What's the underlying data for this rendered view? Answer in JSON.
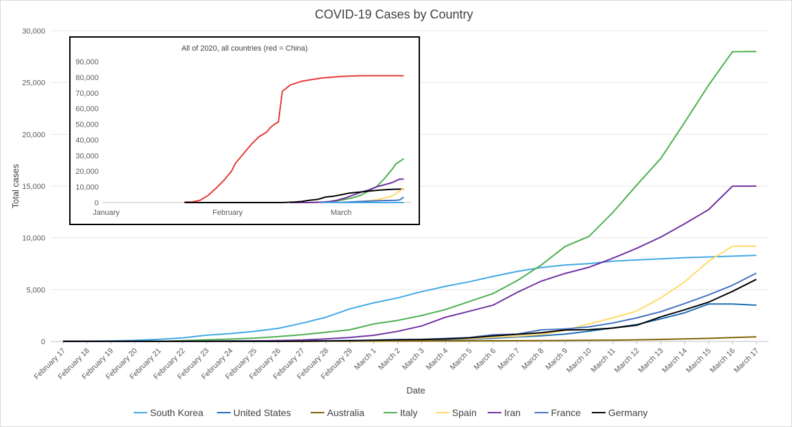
{
  "chart_data": [
    {
      "type": "line",
      "title": "COVID-19 Cases by Country",
      "xlabel": "Date",
      "ylabel": "Total cases",
      "ylim": [
        0,
        30000
      ],
      "yticks": [
        0,
        5000,
        10000,
        15000,
        20000,
        25000,
        30000
      ],
      "ytick_labels": [
        "0",
        "5,000",
        "10,000",
        "15,000",
        "20,000",
        "25,000",
        "30,000"
      ],
      "grid": true,
      "legend_position": "bottom",
      "categories": [
        "February 17",
        "February 18",
        "February 19",
        "February 20",
        "February 21",
        "February 22",
        "February 23",
        "February 24",
        "February 25",
        "February 26",
        "February 27",
        "February 28",
        "February 29",
        "March 1",
        "March 2",
        "March 3",
        "March 4",
        "March 5",
        "March 6",
        "March 7",
        "March 8",
        "March 9",
        "March 10",
        "March 11",
        "March 12",
        "March 13",
        "March 14",
        "March 15",
        "March 16",
        "March 17"
      ],
      "series": [
        {
          "name": "South Korea",
          "color": "#41A8E4",
          "values": [
            30,
            31,
            51,
            104,
            204,
            346,
            602,
            763,
            977,
            1261,
            1766,
            2337,
            3150,
            3736,
            4212,
            4812,
            5328,
            5766,
            6284,
            6767,
            7134,
            7382,
            7513,
            7755,
            7869,
            7979,
            8086,
            8162,
            8236,
            8320
          ]
        },
        {
          "name": "United States",
          "color": "#1F6FB4",
          "values": [
            15,
            15,
            15,
            15,
            35,
            35,
            35,
            53,
            57,
            60,
            60,
            62,
            70,
            75,
            100,
            124,
            158,
            221,
            319,
            435,
            541,
            704,
            994,
            1301,
            1630,
            2183,
            2770,
            3613,
            3613,
            3500
          ]
        },
        {
          "name": "Australia",
          "color": "#7F6000",
          "values": [
            15,
            15,
            15,
            15,
            17,
            21,
            22,
            22,
            22,
            22,
            23,
            25,
            26,
            29,
            33,
            41,
            52,
            57,
            63,
            74,
            80,
            100,
            112,
            127,
            156,
            198,
            250,
            297,
            377,
            452
          ]
        },
        {
          "name": "Italy",
          "color": "#4CAF50",
          "values": [
            3,
            3,
            3,
            3,
            20,
            79,
            157,
            229,
            323,
            470,
            655,
            888,
            1128,
            1694,
            2036,
            2502,
            3089,
            3858,
            4636,
            5883,
            7375,
            9172,
            10149,
            12462,
            15113,
            17660,
            21157,
            24747,
            27980,
            28000
          ]
        },
        {
          "name": "Spain",
          "color": "#FFD966",
          "values": [
            2,
            2,
            2,
            2,
            2,
            2,
            2,
            2,
            6,
            13,
            15,
            32,
            45,
            84,
            120,
            165,
            222,
            259,
            400,
            500,
            673,
            1073,
            1695,
            2277,
            2950,
            4200,
            5753,
            7753,
            9191,
            9200
          ]
        },
        {
          "name": "Iran",
          "color": "#7030A0",
          "values": [
            0,
            0,
            0,
            2,
            5,
            18,
            28,
            43,
            61,
            95,
            139,
            245,
            388,
            593,
            978,
            1501,
            2336,
            2922,
            3513,
            4747,
            5823,
            6566,
            7161,
            8042,
            9000,
            10075,
            11364,
            12729,
            14991,
            15000
          ]
        },
        {
          "name": "France",
          "color": "#4472C4",
          "values": [
            12,
            12,
            12,
            12,
            12,
            12,
            12,
            12,
            14,
            18,
            38,
            57,
            100,
            130,
            191,
            204,
            288,
            380,
            656,
            716,
            1126,
            1209,
            1412,
            1784,
            2281,
            2876,
            3661,
            4499,
            5423,
            6600
          ]
        },
        {
          "name": "Germany",
          "color": "#000000",
          "values": [
            16,
            16,
            16,
            16,
            16,
            16,
            16,
            16,
            18,
            21,
            26,
            53,
            66,
            117,
            150,
            188,
            240,
            349,
            534,
            684,
            847,
            1112,
            1139,
            1296,
            1567,
            2369,
            3062,
            3795,
            4838,
            6000
          ]
        }
      ]
    },
    {
      "type": "line",
      "title": "All of 2020, all countries (red = China)",
      "ylim": [
        0,
        90000
      ],
      "yticks": [
        0,
        10000,
        20000,
        30000,
        40000,
        50000,
        60000,
        70000,
        80000,
        90000
      ],
      "ytick_labels": [
        "0",
        "10,000",
        "20,000",
        "30,000",
        "40,000",
        "50,000",
        "60,000",
        "70,000",
        "80,000",
        "90,000"
      ],
      "x_tick_labels": [
        {
          "label": "January",
          "day": 0
        },
        {
          "label": "February",
          "day": 31
        },
        {
          "label": "March",
          "day": 60
        }
      ],
      "x_range_days": [
        0,
        77
      ],
      "series": [
        {
          "name": "China",
          "color": "#E53935",
          "x": [
            20,
            22,
            24,
            26,
            28,
            30,
            32,
            33,
            35,
            37,
            39,
            41,
            42,
            43,
            44,
            45,
            47,
            50,
            55,
            60,
            65,
            70,
            76
          ],
          "values": [
            300,
            400,
            1500,
            4500,
            9000,
            14000,
            20000,
            25000,
            31000,
            37000,
            42000,
            45000,
            48000,
            50000,
            51500,
            71000,
            75000,
            77500,
            79500,
            80500,
            81000,
            81000,
            81000
          ]
        },
        {
          "name": "Italy",
          "color": "#4CAF50",
          "x": [
            48,
            52,
            55,
            57,
            59,
            61,
            63,
            65,
            67,
            69,
            71,
            73,
            74,
            76
          ],
          "values": [
            0,
            0,
            200,
            650,
            1100,
            2000,
            3100,
            4600,
            7400,
            10100,
            15100,
            21100,
            24700,
            28000
          ]
        },
        {
          "name": "Iran",
          "color": "#7030A0",
          "x": [
            47,
            52,
            55,
            57,
            59,
            61,
            63,
            65,
            67,
            69,
            71,
            73,
            75,
            76
          ],
          "values": [
            0,
            0,
            250,
            600,
            1500,
            2900,
            4700,
            6500,
            8000,
            10000,
            11300,
            12700,
            15000,
            15000
          ]
        },
        {
          "name": "Germany",
          "color": "#000000",
          "x": [
            20,
            45,
            48,
            50,
            52,
            54,
            56,
            58,
            60,
            62,
            64,
            66,
            68,
            70,
            72,
            74,
            76
          ],
          "values": [
            0,
            0,
            300,
            700,
            1500,
            2000,
            3500,
            4000,
            5000,
            6000,
            6500,
            7000,
            7500,
            8000,
            8300,
            8500,
            8600
          ]
        },
        {
          "name": "Spain",
          "color": "#FFD966",
          "x": [
            55,
            60,
            63,
            65,
            67,
            69,
            71,
            73,
            74,
            76
          ],
          "values": [
            0,
            100,
            300,
            600,
            1100,
            1700,
            2900,
            4200,
            5700,
            9200
          ]
        },
        {
          "name": "France",
          "color": "#4472C4",
          "x": [
            55,
            60,
            65,
            70,
            74,
            75,
            76
          ],
          "values": [
            0,
            100,
            700,
            1200,
            1400,
            1700,
            3500
          ]
        },
        {
          "name": "South Korea",
          "color": "#41A8E4",
          "x": [
            55,
            60,
            65,
            70,
            76
          ],
          "values": [
            0,
            0,
            0,
            0,
            0
          ]
        }
      ]
    }
  ]
}
